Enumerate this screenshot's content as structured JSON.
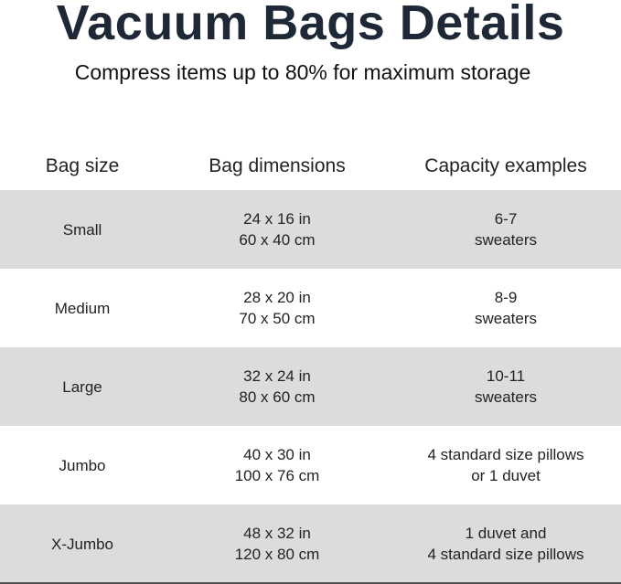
{
  "title": "Vacuum Bags Details",
  "subtitle": "Compress items up to 80% for maximum storage",
  "table": {
    "headers": [
      "Bag size",
      "Bag dimensions",
      "Capacity examples"
    ],
    "rows": [
      {
        "size": "Small",
        "dim_in": "24 x 16 in",
        "dim_cm": "60 x 40 cm",
        "cap1": "6-7",
        "cap2": "sweaters"
      },
      {
        "size": "Medium",
        "dim_in": "28 x 20 in",
        "dim_cm": "70 x 50 cm",
        "cap1": "8-9",
        "cap2": "sweaters"
      },
      {
        "size": "Large",
        "dim_in": "32 x 24 in",
        "dim_cm": "80 x 60 cm",
        "cap1": "10-11",
        "cap2": "sweaters"
      },
      {
        "size": "Jumbo",
        "dim_in": "40 x 30 in",
        "dim_cm": "100 x 76 cm",
        "cap1": "4 standard size pillows",
        "cap2": "or 1 duvet"
      },
      {
        "size": "X-Jumbo",
        "dim_in": "48 x 32 in",
        "dim_cm": "120 x 80 cm",
        "cap1": "1 duvet and",
        "cap2": "4 standard size pillows"
      }
    ]
  },
  "colors": {
    "title": "#1e2836",
    "row_stripe": "#dcdcdc"
  }
}
